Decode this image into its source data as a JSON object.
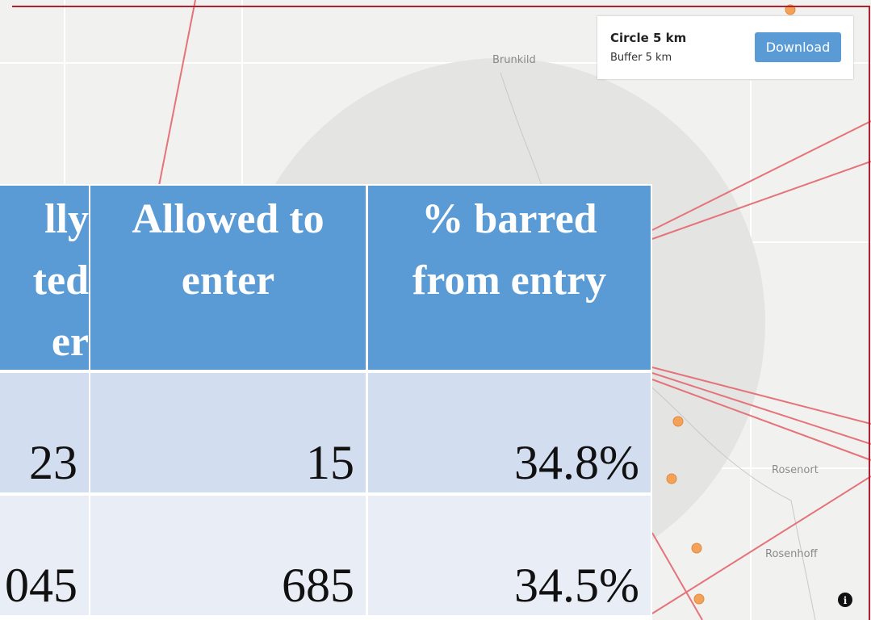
{
  "map": {
    "places": [
      "Brunkild",
      "Rosenort",
      "Rosenhoff"
    ]
  },
  "card": {
    "title": "Circle 5 km",
    "subtitle": "Buffer 5 km",
    "button": "Download"
  },
  "table": {
    "header": [
      [
        "lly",
        "ted",
        "er"
      ],
      [
        "Allowed to",
        "enter"
      ],
      [
        "% barred",
        "from entry"
      ]
    ],
    "rows": [
      [
        "23",
        "15",
        "34.8%"
      ],
      [
        "045",
        "685",
        "34.5%"
      ]
    ]
  }
}
